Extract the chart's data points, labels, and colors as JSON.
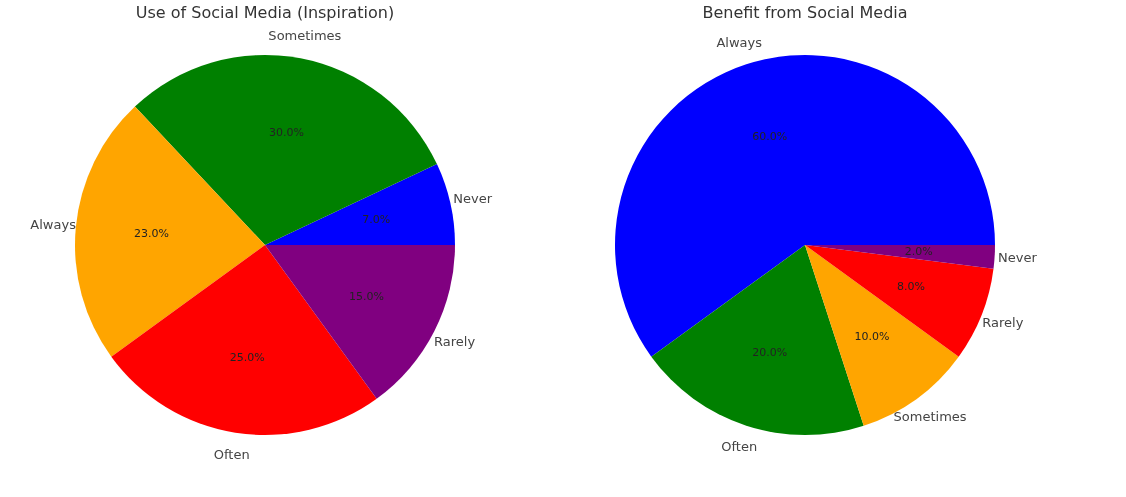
{
  "chart_data": [
    {
      "type": "pie",
      "title": "Use of Social Media (Inspiration)",
      "categories": [
        "Never",
        "Sometimes",
        "Always",
        "Often",
        "Rarely"
      ],
      "values": [
        7.0,
        30.0,
        23.0,
        25.0,
        15.0
      ],
      "value_labels": [
        "7.0%",
        "30.0%",
        "23.0%",
        "25.0%",
        "15.0%"
      ],
      "colors": [
        "#0000ff",
        "#008000",
        "#ffa500",
        "#ff0000",
        "#800080"
      ],
      "legend": false
    },
    {
      "type": "pie",
      "title": "Benefit from Social Media",
      "categories": [
        "Always",
        "Often",
        "Sometimes",
        "Rarely",
        "Never"
      ],
      "values": [
        60.0,
        20.0,
        10.0,
        8.0,
        2.0
      ],
      "value_labels": [
        "60.0%",
        "20.0%",
        "10.0%",
        "8.0%",
        "2.0%"
      ],
      "colors": [
        "#0000ff",
        "#008000",
        "#ffa500",
        "#ff0000",
        "#800080"
      ],
      "legend": false
    }
  ]
}
